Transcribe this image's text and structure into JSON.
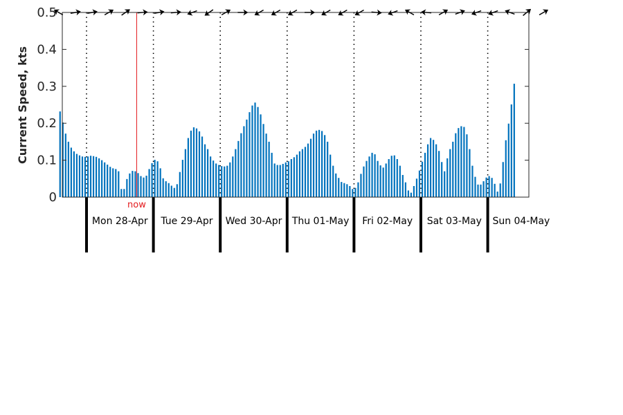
{
  "chart_data": {
    "type": "bar",
    "title": "",
    "xlabel": "",
    "ylabel": "Current Speed, kts",
    "ylim": [
      0,
      0.5
    ],
    "yticks": [
      0,
      0.1,
      0.2,
      0.3,
      0.4,
      0.5
    ],
    "ytick_labels": [
      "0",
      "0.1",
      "0.2",
      "0.3",
      "0.4",
      "0.5"
    ],
    "grid": false,
    "bar_color": "#0072bd",
    "now_color": "#e3191c",
    "now_label": "now",
    "now_time": "Mon 28-Apr 18:00",
    "x_start": "Sun 27-Apr 14:00",
    "x_end": "Sun 04-May 23:00",
    "day_labels": [
      "Mon 28-Apr",
      "Tue 29-Apr",
      "Wed 30-Apr",
      "Thu 01-May",
      "Fri 02-May",
      "Sat 03-May",
      "Sun 04-May"
    ],
    "time_step_hours": 1,
    "values": [
      0.232,
      0.202,
      0.172,
      0.15,
      0.134,
      0.124,
      0.117,
      0.113,
      0.11,
      0.109,
      0.11,
      0.112,
      0.111,
      0.109,
      0.105,
      0.1,
      0.094,
      0.088,
      0.082,
      0.078,
      0.076,
      0.07,
      0.022,
      0.022,
      0.049,
      0.064,
      0.071,
      0.07,
      0.065,
      0.057,
      0.053,
      0.058,
      0.076,
      0.092,
      0.101,
      0.097,
      0.078,
      0.051,
      0.043,
      0.038,
      0.031,
      0.025,
      0.035,
      0.068,
      0.101,
      0.13,
      0.16,
      0.18,
      0.189,
      0.186,
      0.178,
      0.164,
      0.143,
      0.13,
      0.11,
      0.099,
      0.091,
      0.087,
      0.084,
      0.083,
      0.085,
      0.094,
      0.11,
      0.13,
      0.152,
      0.173,
      0.192,
      0.21,
      0.23,
      0.248,
      0.256,
      0.244,
      0.224,
      0.198,
      0.172,
      0.15,
      0.12,
      0.091,
      0.087,
      0.087,
      0.09,
      0.094,
      0.097,
      0.103,
      0.108,
      0.115,
      0.124,
      0.13,
      0.136,
      0.145,
      0.158,
      0.172,
      0.18,
      0.182,
      0.179,
      0.168,
      0.15,
      0.115,
      0.085,
      0.064,
      0.052,
      0.041,
      0.038,
      0.035,
      0.03,
      0.022,
      0.025,
      0.04,
      0.063,
      0.083,
      0.098,
      0.11,
      0.12,
      0.116,
      0.098,
      0.086,
      0.08,
      0.091,
      0.103,
      0.112,
      0.113,
      0.103,
      0.085,
      0.06,
      0.04,
      0.018,
      0.012,
      0.03,
      0.05,
      0.072,
      0.096,
      0.12,
      0.143,
      0.16,
      0.155,
      0.143,
      0.125,
      0.095,
      0.07,
      0.105,
      0.13,
      0.15,
      0.173,
      0.187,
      0.192,
      0.19,
      0.17,
      0.13,
      0.085,
      0.055,
      0.034,
      0.034,
      0.043,
      0.053,
      0.057,
      0.052,
      0.036,
      0.015,
      0.037,
      0.095,
      0.154,
      0.199,
      0.251,
      0.307
    ],
    "direction_arrows": [
      {
        "time": "Sun 27-Apr 14:00",
        "heading_deg": 300
      },
      {
        "time": "Sun 27-Apr 20:00",
        "heading_deg": 80
      },
      {
        "time": "Mon 28-Apr 02:00",
        "heading_deg": 80
      },
      {
        "time": "Mon 28-Apr 08:00",
        "heading_deg": 60
      },
      {
        "time": "Mon 28-Apr 14:00",
        "heading_deg": 55
      },
      {
        "time": "Mon 28-Apr 20:00",
        "heading_deg": 85
      },
      {
        "time": "Tue 29-Apr 02:00",
        "heading_deg": 80
      },
      {
        "time": "Tue 29-Apr 08:00",
        "heading_deg": 85
      },
      {
        "time": "Tue 29-Apr 14:00",
        "heading_deg": 250
      },
      {
        "time": "Tue 29-Apr 20:00",
        "heading_deg": 235
      },
      {
        "time": "Wed 30-Apr 02:00",
        "heading_deg": 60
      },
      {
        "time": "Wed 30-Apr 08:00",
        "heading_deg": 90
      },
      {
        "time": "Wed 30-Apr 14:00",
        "heading_deg": 240
      },
      {
        "time": "Wed 30-Apr 20:00",
        "heading_deg": 240
      },
      {
        "time": "Thu 01-May 02:00",
        "heading_deg": 240
      },
      {
        "time": "Thu 01-May 08:00",
        "heading_deg": 90
      },
      {
        "time": "Thu 01-May 14:00",
        "heading_deg": 240
      },
      {
        "time": "Thu 01-May 20:00",
        "heading_deg": 240
      },
      {
        "time": "Fri 02-May 02:00",
        "heading_deg": 240
      },
      {
        "time": "Fri 02-May 08:00",
        "heading_deg": 95
      },
      {
        "time": "Fri 02-May 14:00",
        "heading_deg": 250
      },
      {
        "time": "Fri 02-May 20:00",
        "heading_deg": 300
      },
      {
        "time": "Sat 03-May 02:00",
        "heading_deg": 275
      },
      {
        "time": "Sat 03-May 08:00",
        "heading_deg": 60
      },
      {
        "time": "Sat 03-May 14:00",
        "heading_deg": 70
      },
      {
        "time": "Sat 03-May 20:00",
        "heading_deg": 250
      },
      {
        "time": "Sun 04-May 02:00",
        "heading_deg": 250
      },
      {
        "time": "Sun 04-May 08:00",
        "heading_deg": 290
      },
      {
        "time": "Sun 04-May 14:00",
        "heading_deg": 50
      },
      {
        "time": "Sun 04-May 20:00",
        "heading_deg": 60
      }
    ]
  }
}
